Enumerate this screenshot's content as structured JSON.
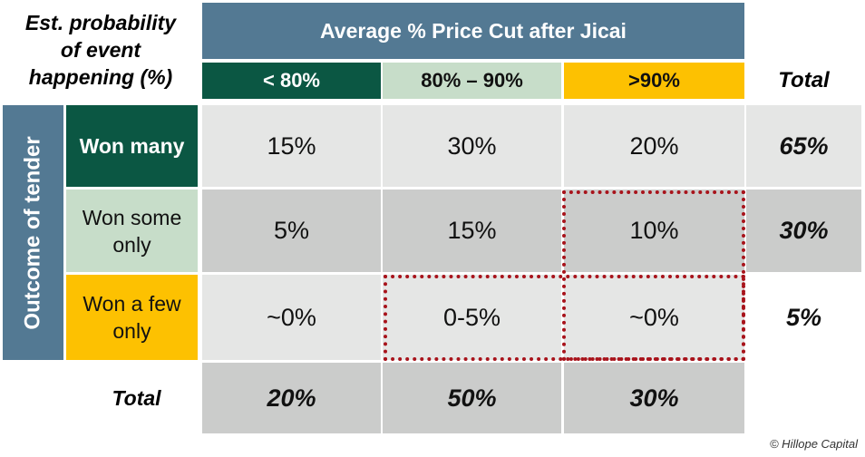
{
  "corner_label": [
    "Est. probability",
    "of event",
    "happening (%)"
  ],
  "header": {
    "title": "Average % Price Cut after Jicai",
    "columns": [
      "< 80%",
      "80% – 90%",
      ">90%"
    ],
    "total_label": "Total"
  },
  "side_label": "Outcome of tender",
  "rows": [
    {
      "label": "Won many",
      "values": [
        "15%",
        "30%",
        "20%"
      ],
      "total": "65%"
    },
    {
      "label": "Won some only",
      "values": [
        "5%",
        "15%",
        "10%"
      ],
      "total": "30%"
    },
    {
      "label": "Won a few only",
      "values": [
        "~0%",
        "0-5%",
        "~0%"
      ],
      "total": "5%"
    }
  ],
  "totals_row": {
    "label": "Total",
    "values": [
      "20%",
      "50%",
      "30%"
    ]
  },
  "credit": "© Hillope Capital",
  "colors": {
    "header_blue": "#537993",
    "dark_green": "#0b5743",
    "light_green": "#c7ddc9",
    "amber": "#fdc101",
    "highlight_red": "#a8131b"
  }
}
